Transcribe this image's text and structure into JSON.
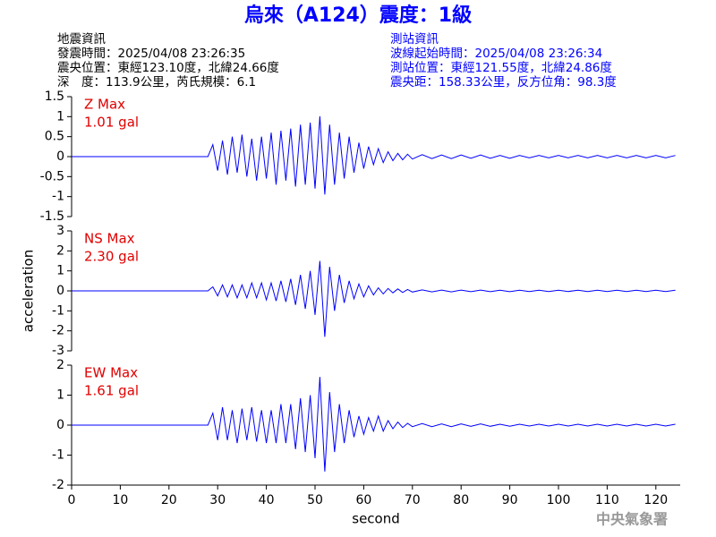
{
  "header": {
    "title": "烏來（A124）震度：1級",
    "left": [
      "地震資訊",
      "發震時間：2025/04/08 23:26:35",
      "震央位置：東經123.10度，北緯24.66度",
      "深　度：113.9公里，芮氏規模：6.1"
    ],
    "right": [
      "測站資訊",
      "波線起始時間：2025/04/08 23:26:34",
      "測站位置：東經121.55度，北緯24.86度",
      "震央距：158.33公里，反方位角：98.3度"
    ],
    "watermark": "中央氣象署"
  },
  "chart_data": [
    {
      "type": "line",
      "color": "#0000ff",
      "annotations": [
        "Z Max",
        "1.01 gal"
      ],
      "x": [
        0,
        28,
        29,
        30,
        31,
        32,
        33,
        34,
        35,
        36,
        37,
        38,
        39,
        40,
        41,
        42,
        43,
        44,
        45,
        46,
        47,
        48,
        49,
        50,
        51,
        52,
        53,
        54,
        55,
        56,
        57,
        58,
        59,
        60,
        61,
        62,
        63,
        64,
        65,
        66,
        67,
        68,
        69,
        70,
        72,
        74,
        76,
        78,
        80,
        82,
        84,
        86,
        88,
        90,
        92,
        94,
        96,
        98,
        100,
        102,
        104,
        106,
        108,
        110,
        112,
        114,
        116,
        118,
        120,
        122,
        124
      ],
      "values": [
        0,
        0,
        0.3,
        -0.35,
        0.4,
        -0.45,
        0.5,
        -0.4,
        0.55,
        -0.5,
        0.45,
        -0.6,
        0.5,
        -0.55,
        0.6,
        -0.7,
        0.65,
        -0.6,
        0.7,
        -0.75,
        0.8,
        -0.7,
        0.85,
        -0.8,
        1.01,
        -0.95,
        0.8,
        -0.7,
        0.6,
        -0.55,
        0.5,
        -0.4,
        0.35,
        -0.3,
        0.25,
        -0.2,
        0.2,
        -0.15,
        0.12,
        -0.1,
        0.08,
        -0.08,
        0.06,
        -0.06,
        0.05,
        -0.05,
        0.04,
        -0.05,
        0.04,
        -0.04,
        0.04,
        -0.04,
        0.03,
        -0.04,
        0.03,
        -0.03,
        0.03,
        -0.03,
        0.03,
        -0.03,
        0.03,
        -0.03,
        0.03,
        -0.03,
        0.03,
        -0.03,
        0.03,
        -0.03,
        0.03,
        -0.03,
        0.03
      ],
      "xlim": [
        0,
        125
      ],
      "ylim": [
        -1.5,
        1.5
      ],
      "yticks": [
        1.5,
        1,
        0.5,
        0,
        -0.5,
        -1,
        -1.5
      ]
    },
    {
      "type": "line",
      "color": "#0000ff",
      "annotations": [
        "NS Max",
        "2.30 gal"
      ],
      "ylabel": "acceleration",
      "x": [
        0,
        28,
        29,
        30,
        31,
        32,
        33,
        34,
        35,
        36,
        37,
        38,
        39,
        40,
        41,
        42,
        43,
        44,
        45,
        46,
        47,
        48,
        49,
        50,
        51,
        52,
        53,
        54,
        55,
        56,
        57,
        58,
        59,
        60,
        61,
        62,
        63,
        64,
        65,
        66,
        67,
        68,
        69,
        70,
        72,
        74,
        76,
        78,
        80,
        82,
        84,
        86,
        88,
        90,
        92,
        94,
        96,
        98,
        100,
        102,
        104,
        106,
        108,
        110,
        112,
        114,
        116,
        118,
        120,
        122,
        124
      ],
      "values": [
        0,
        0,
        0.2,
        -0.25,
        0.3,
        -0.3,
        0.3,
        -0.35,
        0.3,
        -0.35,
        0.4,
        -0.35,
        0.4,
        -0.45,
        0.4,
        -0.5,
        0.5,
        -0.55,
        0.6,
        -0.7,
        0.8,
        -0.9,
        1.0,
        -1.2,
        1.5,
        -2.3,
        1.2,
        -1.0,
        0.8,
        -0.6,
        0.5,
        -0.4,
        0.35,
        -0.3,
        0.25,
        -0.2,
        0.15,
        -0.15,
        0.12,
        -0.1,
        0.1,
        -0.08,
        0.07,
        -0.06,
        0.05,
        -0.05,
        0.04,
        -0.05,
        0.04,
        -0.04,
        0.04,
        -0.04,
        0.03,
        -0.04,
        0.03,
        -0.03,
        0.03,
        -0.03,
        0.03,
        -0.03,
        0.03,
        -0.03,
        0.03,
        -0.03,
        0.03,
        -0.03,
        0.03,
        -0.03,
        0.03,
        -0.03,
        0.03
      ],
      "xlim": [
        0,
        125
      ],
      "ylim": [
        -3,
        3
      ],
      "yticks": [
        3,
        2,
        1,
        0,
        -1,
        -2,
        -3
      ]
    },
    {
      "type": "line",
      "color": "#0000ff",
      "annotations": [
        "EW Max",
        "1.61 gal"
      ],
      "xlabel": "second",
      "x": [
        0,
        28,
        29,
        30,
        31,
        32,
        33,
        34,
        35,
        36,
        37,
        38,
        39,
        40,
        41,
        42,
        43,
        44,
        45,
        46,
        47,
        48,
        49,
        50,
        51,
        52,
        53,
        54,
        55,
        56,
        57,
        58,
        59,
        60,
        61,
        62,
        63,
        64,
        65,
        66,
        67,
        68,
        69,
        70,
        72,
        74,
        76,
        78,
        80,
        82,
        84,
        86,
        88,
        90,
        92,
        94,
        96,
        98,
        100,
        102,
        104,
        106,
        108,
        110,
        112,
        114,
        116,
        118,
        120,
        122,
        124
      ],
      "values": [
        0,
        0,
        0.4,
        -0.5,
        0.6,
        -0.5,
        0.5,
        -0.6,
        0.55,
        -0.5,
        0.6,
        -0.55,
        0.5,
        -0.6,
        0.5,
        -0.6,
        0.7,
        -0.6,
        0.7,
        -0.8,
        0.9,
        -0.9,
        1.0,
        -1.1,
        1.61,
        -1.55,
        1.1,
        -0.9,
        0.7,
        -0.6,
        0.5,
        -0.4,
        0.3,
        -0.3,
        0.25,
        -0.2,
        0.3,
        -0.2,
        0.15,
        -0.12,
        0.1,
        -0.08,
        0.06,
        -0.05,
        0.05,
        -0.05,
        0.04,
        -0.05,
        0.04,
        -0.04,
        0.04,
        -0.04,
        0.03,
        -0.04,
        0.03,
        -0.03,
        0.03,
        -0.03,
        0.03,
        -0.03,
        0.03,
        -0.03,
        0.03,
        -0.03,
        0.03,
        -0.03,
        0.03,
        -0.03,
        0.03,
        -0.03,
        0.03
      ],
      "xlim": [
        0,
        125
      ],
      "ylim": [
        -2,
        2
      ],
      "yticks": [
        2,
        1,
        0,
        -1,
        -2
      ],
      "xticks": [
        0,
        10,
        20,
        30,
        40,
        50,
        60,
        70,
        80,
        90,
        100,
        110,
        120
      ]
    }
  ]
}
